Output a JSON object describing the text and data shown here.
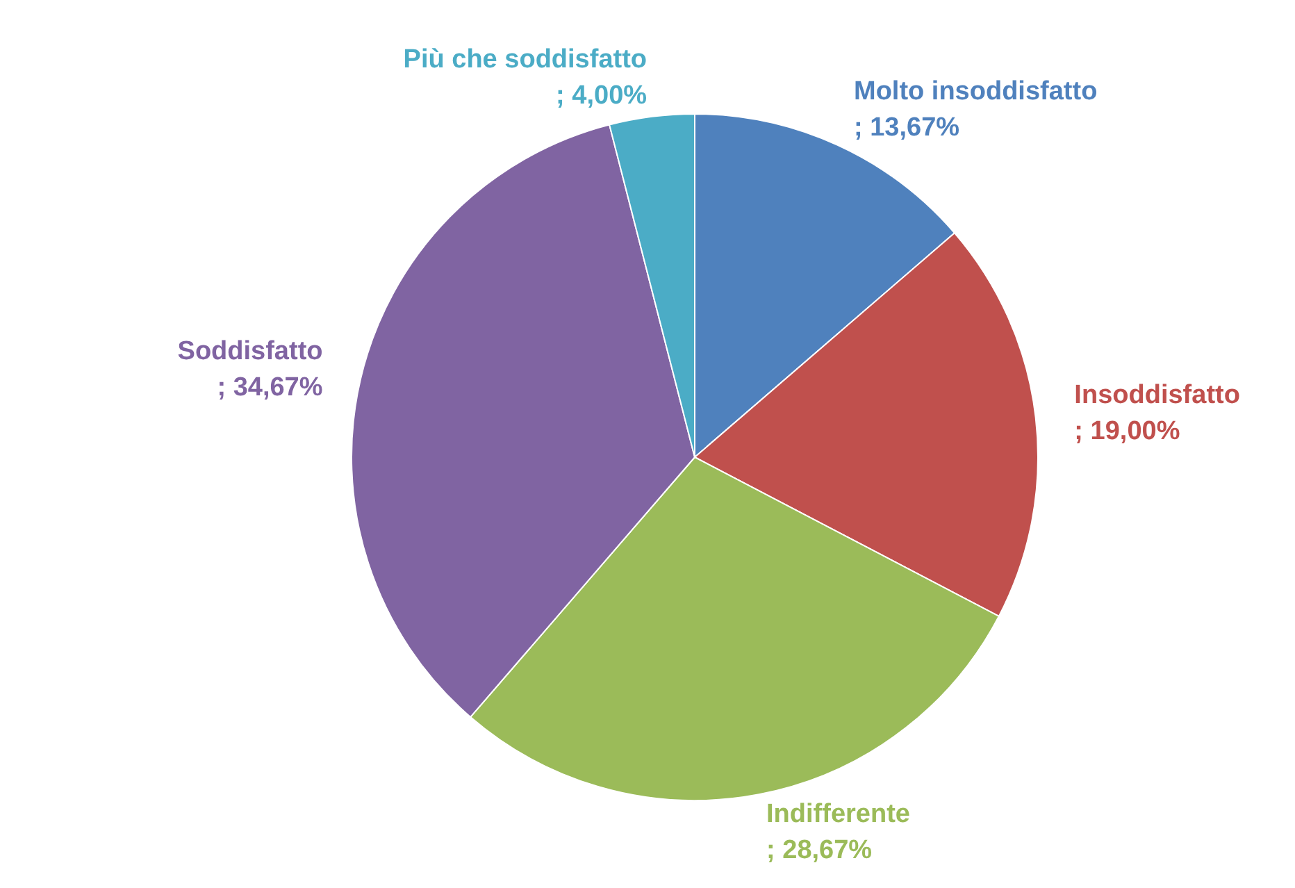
{
  "chart_data": {
    "type": "pie",
    "categories": [
      "Molto insoddisfatto",
      "Insoddisfatto",
      "Indifferente",
      "Soddisfatto",
      "Più che soddisfatto"
    ],
    "values": [
      13.67,
      19.0,
      28.67,
      34.67,
      4.0
    ],
    "value_labels": [
      "; 13,67%",
      "; 19,00%",
      "; 28,67%",
      "; 34,67%",
      "; 4,00%"
    ],
    "colors": [
      "#4f81bd",
      "#c0504d",
      "#9bbb59",
      "#8064a2",
      "#4bacc6"
    ],
    "legend": false
  }
}
